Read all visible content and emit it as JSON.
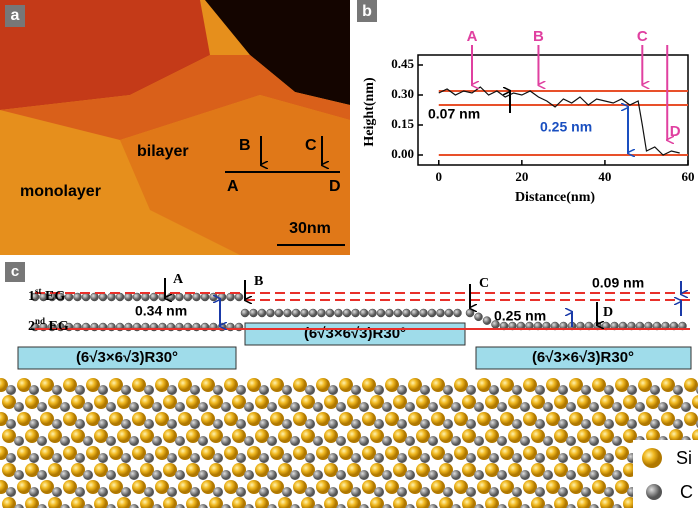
{
  "panel_a": {
    "label": "a",
    "monolayer": "monolayer",
    "bilayer": "bilayer",
    "points": [
      "A",
      "B",
      "C",
      "D"
    ],
    "scale_bar": "30nm"
  },
  "chart_data": {
    "type": "line",
    "panel_label": "b",
    "xlabel": "Distance(nm)",
    "ylabel": "Height(nm)",
    "x": [
      0,
      2,
      4,
      6,
      8,
      10,
      12,
      14,
      16,
      18,
      20,
      22,
      24,
      26,
      28,
      30,
      32,
      34,
      36,
      38,
      40,
      42,
      44,
      46,
      48,
      49,
      50,
      52,
      54,
      56,
      58
    ],
    "series": [
      {
        "color": "#111111",
        "values": [
          0.31,
          0.33,
          0.3,
          0.32,
          0.31,
          0.34,
          0.3,
          0.32,
          0.29,
          0.31,
          0.3,
          0.32,
          0.29,
          0.27,
          0.24,
          0.28,
          0.26,
          0.29,
          0.25,
          0.28,
          0.27,
          0.26,
          0.28,
          0.25,
          0.27,
          0.15,
          0.02,
          0.04,
          0,
          0.02,
          0.01
        ]
      }
    ],
    "xlim": [
      -5,
      60
    ],
    "ylim": [
      -0.05,
      0.5
    ],
    "xticks": [
      0,
      20,
      40,
      60
    ],
    "yticks": [
      {
        "value": 0,
        "label": "0.00"
      },
      0.15,
      {
        "value": 0.3,
        "label": "0.30"
      },
      0.45
    ],
    "reference_lines": {
      "color": "#e8502a",
      "values": [
        0.32,
        0.25,
        0
      ]
    },
    "markers": {
      "color": "#e040a0",
      "labels": [
        "A",
        "B",
        "C",
        "D"
      ],
      "x": [
        8,
        24,
        49,
        55
      ]
    },
    "annotations": [
      "0.07 nm",
      "0.25 nm"
    ]
  },
  "panel_c": {
    "label": "c",
    "layers": [
      {
        "number": "1",
        "suffix": "st",
        "name": "EG"
      },
      {
        "number": "2",
        "suffix": "nd",
        "name": "EG"
      }
    ],
    "points": [
      "A",
      "B",
      "C",
      "D"
    ],
    "gaps": [
      "0.34 nm",
      "0.25 nm",
      "0.09 nm"
    ],
    "buffer": [
      "(6√3×6√3)R30°",
      "(6√3×6√3)R30°",
      "(6√3×6√3)R30°"
    ],
    "legend": [
      "Si",
      "C"
    ]
  }
}
